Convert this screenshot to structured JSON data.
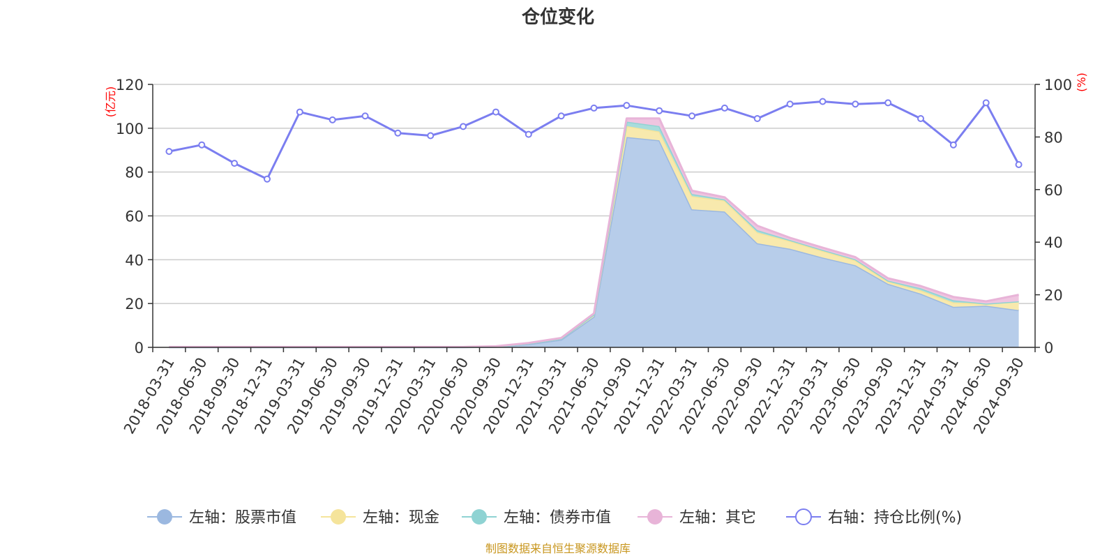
{
  "chart_data": {
    "type": "area",
    "title": "仓位变化",
    "source": "制图数据来自恒生聚源数据库",
    "left_axis": {
      "unit": "(亿元)",
      "min": 0,
      "max": 120,
      "ticks": [
        "0",
        "20",
        "40",
        "60",
        "80",
        "100",
        "120"
      ]
    },
    "right_axis": {
      "unit": "(%)",
      "min": 0,
      "max": 100,
      "ticks": [
        "0",
        "20",
        "40",
        "60",
        "80",
        "100"
      ]
    },
    "categories": [
      "2018-03-31",
      "2018-06-30",
      "2018-09-30",
      "2018-12-31",
      "2019-03-31",
      "2019-06-30",
      "2019-09-30",
      "2019-12-31",
      "2020-03-31",
      "2020-06-30",
      "2020-09-30",
      "2020-12-31",
      "2021-03-31",
      "2021-06-30",
      "2021-09-30",
      "2021-12-31",
      "2022-03-31",
      "2022-06-30",
      "2022-09-30",
      "2022-12-31",
      "2023-03-31",
      "2023-06-30",
      "2023-09-30",
      "2023-12-31",
      "2024-03-31",
      "2024-06-30",
      "2024-09-30"
    ],
    "series": [
      {
        "name": "左轴：股票市值",
        "axis": "left",
        "type": "stacked-area",
        "color": "#9bb8e0",
        "fill": "#b7cdea",
        "values": [
          0.1,
          0.1,
          0.1,
          0.1,
          0.1,
          0.1,
          0.1,
          0.1,
          0.1,
          0.1,
          0.3,
          1.5,
          3.5,
          14,
          96,
          94.5,
          63,
          62,
          47.5,
          45,
          41,
          37.5,
          29,
          24.5,
          18.5,
          19,
          17
        ]
      },
      {
        "name": "左轴：现金",
        "axis": "left",
        "type": "stacked-area",
        "color": "#f5e49b",
        "fill": "#f8e9ad",
        "values": [
          0.05,
          0.05,
          0.05,
          0.05,
          0.05,
          0.05,
          0.05,
          0.05,
          0.05,
          0.05,
          0.1,
          0.3,
          0.5,
          1,
          5,
          4,
          6,
          5,
          5,
          3.5,
          3,
          2.2,
          1,
          1.5,
          2,
          1,
          4
        ]
      },
      {
        "name": "左轴：债券市值",
        "axis": "left",
        "type": "stacked-area",
        "color": "#8fd3d3",
        "fill": "#a8dcdc",
        "values": [
          0,
          0,
          0,
          0,
          0,
          0,
          0,
          0,
          0,
          0,
          0,
          0,
          0,
          0,
          2,
          2.5,
          1,
          0.5,
          1,
          0.5,
          0.5,
          0.5,
          0.5,
          1,
          1,
          0,
          0
        ]
      },
      {
        "name": "左轴：其它",
        "axis": "left",
        "type": "stacked-area",
        "color": "#e8b4d8",
        "fill": "#efc5e0",
        "values": [
          0.05,
          0.05,
          0.05,
          0.05,
          0.05,
          0.05,
          0.05,
          0.05,
          0.05,
          0.05,
          0.1,
          0.2,
          0.3,
          0.5,
          1.5,
          3.5,
          1.5,
          1,
          2,
          1,
          1,
          1,
          1,
          1,
          1.5,
          1,
          3
        ]
      },
      {
        "name": "右轴：持仓比例(%)",
        "axis": "right",
        "type": "line",
        "color": "#7b7ef0",
        "values": [
          74.5,
          77,
          70,
          64,
          89.5,
          86.5,
          88,
          81.5,
          80.5,
          84,
          89.5,
          81,
          88,
          91,
          92,
          90,
          88,
          91,
          87,
          92.5,
          93.5,
          92.5,
          93,
          87,
          77,
          93,
          69.5
        ]
      }
    ]
  }
}
